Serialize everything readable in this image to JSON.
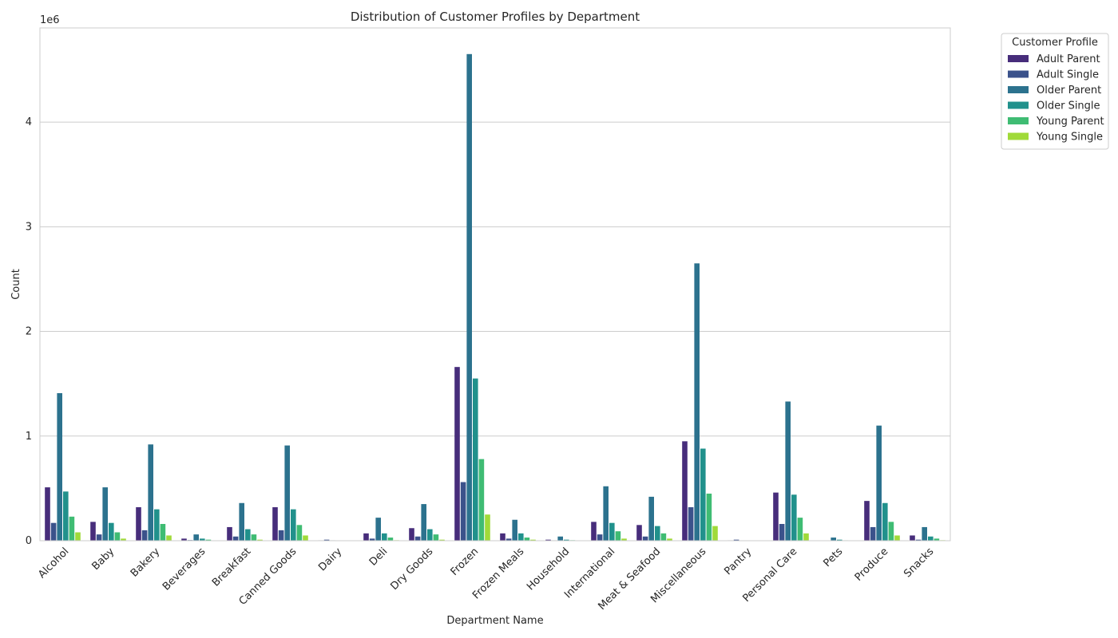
{
  "chart_data": {
    "type": "bar",
    "title": "Distribution of Customer Profiles by Department",
    "xlabel": "Department Name",
    "ylabel": "Count",
    "y_multiplier_label": "1e6",
    "ylim": [
      0,
      4.9
    ],
    "yticks": [
      0,
      1,
      2,
      3,
      4
    ],
    "grid": true,
    "legend_title": "Customer Profile",
    "legend_placement": "outside-top-right",
    "categories": [
      "Alcohol",
      "Baby",
      "Bakery",
      "Beverages",
      "Breakfast",
      "Canned Goods",
      "Dairy",
      "Deli",
      "Dry Goods",
      "Frozen",
      "Frozen Meals",
      "Household",
      "International",
      "Meat & Seafood",
      "Miscellaneous",
      "Pantry",
      "Personal Care",
      "Pets",
      "Produce",
      "Snacks"
    ],
    "series": [
      {
        "name": "Adult Parent",
        "color": "#472d7b",
        "values": [
          0.51,
          0.18,
          0.32,
          0.02,
          0.13,
          0.32,
          0.004,
          0.07,
          0.12,
          1.66,
          0.07,
          0.01,
          0.18,
          0.15,
          0.95,
          0.004,
          0.46,
          0.003,
          0.38,
          0.05
        ]
      },
      {
        "name": "Adult Single",
        "color": "#3b528b",
        "values": [
          0.17,
          0.06,
          0.1,
          0.006,
          0.04,
          0.1,
          0.01,
          0.02,
          0.04,
          0.56,
          0.02,
          0.004,
          0.06,
          0.04,
          0.32,
          0.01,
          0.16,
          0.001,
          0.13,
          0.01
        ]
      },
      {
        "name": "Older Parent",
        "color": "#2c728e",
        "values": [
          1.41,
          0.51,
          0.92,
          0.06,
          0.36,
          0.91,
          0.004,
          0.22,
          0.35,
          4.65,
          0.2,
          0.04,
          0.52,
          0.42,
          2.65,
          0.003,
          1.33,
          0.03,
          1.1,
          0.13
        ]
      },
      {
        "name": "Older Single",
        "color": "#21918c",
        "values": [
          0.47,
          0.17,
          0.3,
          0.02,
          0.11,
          0.3,
          0.002,
          0.07,
          0.11,
          1.55,
          0.07,
          0.01,
          0.17,
          0.14,
          0.88,
          0.002,
          0.44,
          0.01,
          0.36,
          0.04
        ]
      },
      {
        "name": "Young Parent",
        "color": "#3fbc73",
        "values": [
          0.23,
          0.08,
          0.16,
          0.01,
          0.06,
          0.15,
          0.001,
          0.03,
          0.06,
          0.78,
          0.03,
          0.005,
          0.09,
          0.07,
          0.45,
          0.001,
          0.22,
          0.004,
          0.18,
          0.02
        ]
      },
      {
        "name": "Young Single",
        "color": "#a0da39",
        "values": [
          0.08,
          0.02,
          0.05,
          0.003,
          0.01,
          0.05,
          0.0,
          0.005,
          0.01,
          0.25,
          0.01,
          0.001,
          0.02,
          0.02,
          0.14,
          0.0,
          0.07,
          0.001,
          0.05,
          0.005
        ]
      }
    ]
  }
}
